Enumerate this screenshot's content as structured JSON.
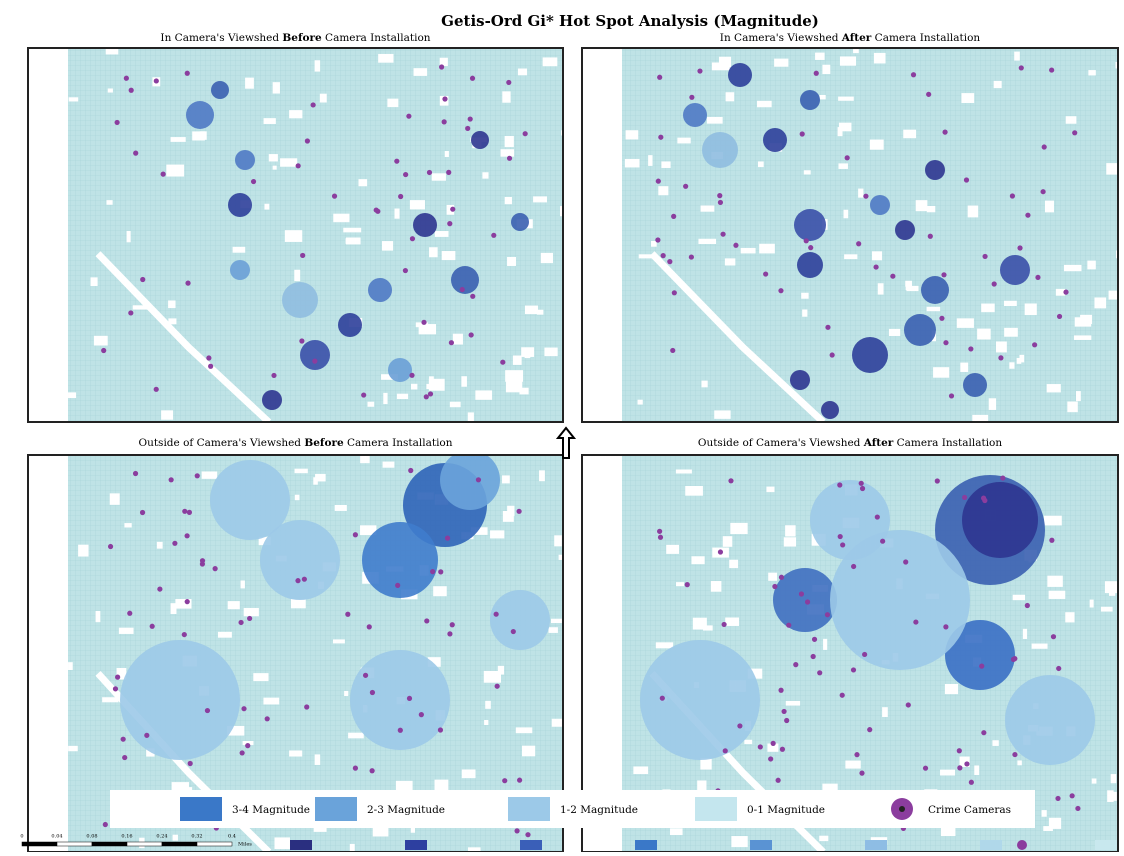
{
  "title": "Getis-Ord Gi* Hot Spot Analysis (Magnitude)",
  "panels": [
    {
      "title": {
        "before": "In Camera's Viewshed ",
        "bold": "Before",
        "after": " Camera Installation"
      }
    },
    {
      "title": {
        "before": "In Camera's Viewshed ",
        "bold": "After",
        "after": " Camera Installation"
      }
    },
    {
      "title": {
        "before": "Outside of Camera's Viewshed ",
        "bold": "Before",
        "after": " Camera Installation"
      }
    },
    {
      "title": {
        "before": "Outside of Camera's Viewshed ",
        "bold": "After",
        "after": " Camera Installation"
      }
    }
  ],
  "legend": [
    "3-4 Magnitude",
    "2-3 Magnitude",
    "1-2 Magnitude",
    "0-1 Magnitude",
    "Crime Cameras"
  ],
  "scale_bar": {
    "labels": [
      "0",
      "0.04",
      "0.08",
      "0.16",
      "0.24",
      "0.32",
      "0.4"
    ],
    "unit": "Miles"
  }
}
